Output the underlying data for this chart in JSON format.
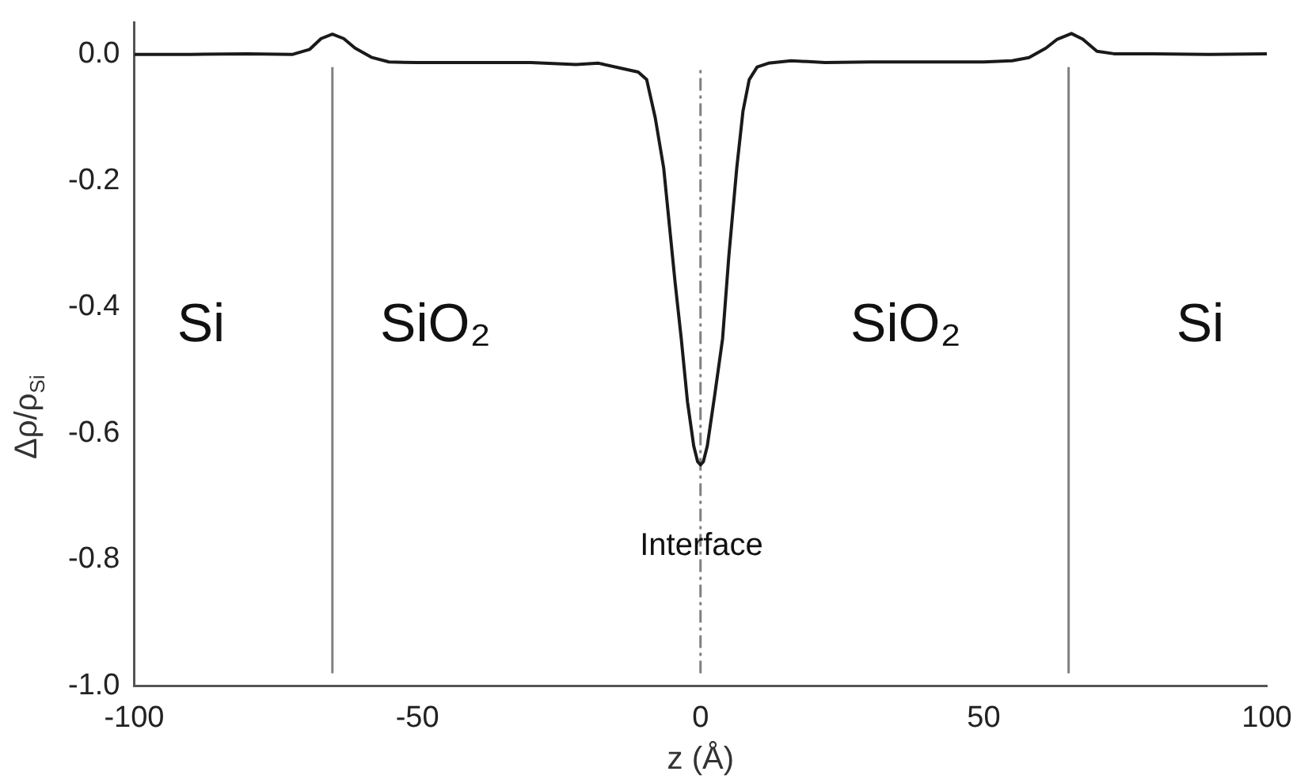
{
  "chart_data": {
    "type": "line",
    "xlabel": "z (Å)",
    "ylabel": "Δρ/ρ$_{Si}$",
    "x": [
      -100,
      -90,
      -80,
      -72,
      -69,
      -67,
      -65,
      -63,
      -61,
      -58,
      -55,
      -50,
      -40,
      -30,
      -22,
      -18,
      -14,
      -11,
      -9.5,
      -8,
      -6.5,
      -5.5,
      -4.5,
      -3.4,
      -2.3,
      -1.2,
      -0.5,
      0,
      0.5,
      1.2,
      2.5,
      3.9,
      5,
      6.4,
      7.5,
      8.6,
      10,
      12,
      16,
      22,
      30,
      40,
      50,
      55,
      58,
      61,
      63,
      65.5,
      67.5,
      70,
      73,
      80,
      90,
      100
    ],
    "values": [
      0.0,
      0.0,
      0.001,
      0.0,
      0.008,
      0.025,
      0.032,
      0.025,
      0.01,
      -0.005,
      -0.012,
      -0.013,
      -0.013,
      -0.013,
      -0.016,
      -0.014,
      -0.022,
      -0.028,
      -0.04,
      -0.1,
      -0.18,
      -0.27,
      -0.36,
      -0.45,
      -0.55,
      -0.62,
      -0.645,
      -0.65,
      -0.645,
      -0.62,
      -0.54,
      -0.45,
      -0.32,
      -0.18,
      -0.09,
      -0.04,
      -0.02,
      -0.014,
      -0.01,
      -0.013,
      -0.012,
      -0.012,
      -0.012,
      -0.01,
      -0.005,
      0.01,
      0.024,
      0.033,
      0.024,
      0.005,
      0.001,
      0.001,
      0.0,
      0.001
    ],
    "color": "#1a1a1a",
    "marker": "none",
    "line_style": "solid",
    "grid": false,
    "legend": false,
    "xlim": [
      -100,
      100
    ],
    "xticks": [
      -100,
      -50,
      0,
      50,
      100
    ],
    "ylim": [
      -1.0,
      0.05
    ],
    "yticks": [
      {
        "value": 0,
        "label": "0.0"
      },
      {
        "value": -0.2,
        "label": "-0.2"
      },
      {
        "value": -0.4,
        "label": "-0.4"
      },
      {
        "value": -0.6,
        "label": "-0.6"
      },
      {
        "value": -0.8,
        "label": "-0.8"
      },
      {
        "value": -1.0,
        "label": "-1.0"
      }
    ],
    "ref_lines": [
      {
        "axis": "x",
        "value": -65,
        "color": "#808080",
        "line_style": "solid"
      },
      {
        "axis": "x",
        "value": 0,
        "color": "#808080",
        "line_style": "dashdot"
      },
      {
        "axis": "x",
        "value": 65,
        "color": "#808080",
        "line_style": "solid"
      }
    ],
    "annotations": [
      "Si",
      "SiO₂",
      "SiO₂",
      "Si",
      "Interface"
    ]
  }
}
